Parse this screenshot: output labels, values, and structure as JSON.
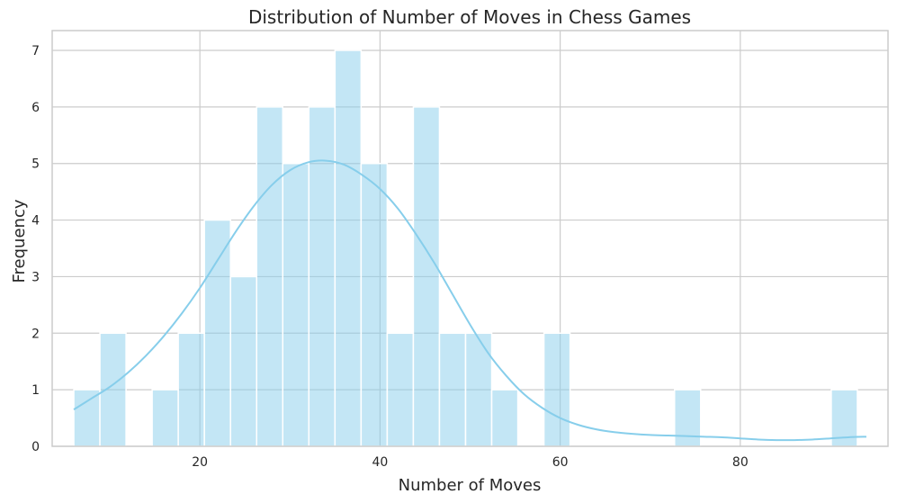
{
  "chart_data": {
    "type": "bar",
    "title": "Distribution of Number of Moves in Chess Games",
    "xlabel": "Number of Moves",
    "ylabel": "Frequency",
    "xlim": [
      3.6,
      96.4
    ],
    "ylim": [
      0,
      7.35
    ],
    "x_ticks": [
      20,
      40,
      60,
      80
    ],
    "y_ticks": [
      0,
      1,
      2,
      3,
      4,
      5,
      6,
      7
    ],
    "grid": true,
    "bins": [
      {
        "start": 6.0,
        "end": 8.9,
        "count": 1
      },
      {
        "start": 8.9,
        "end": 11.8,
        "count": 2
      },
      {
        "start": 11.8,
        "end": 14.7,
        "count": 0
      },
      {
        "start": 14.7,
        "end": 17.6,
        "count": 1
      },
      {
        "start": 17.6,
        "end": 20.5,
        "count": 2
      },
      {
        "start": 20.5,
        "end": 23.4,
        "count": 4
      },
      {
        "start": 23.4,
        "end": 26.3,
        "count": 3
      },
      {
        "start": 26.3,
        "end": 29.2,
        "count": 6
      },
      {
        "start": 29.2,
        "end": 32.1,
        "count": 5
      },
      {
        "start": 32.1,
        "end": 35.0,
        "count": 6
      },
      {
        "start": 35.0,
        "end": 37.9,
        "count": 7
      },
      {
        "start": 37.9,
        "end": 40.8,
        "count": 5
      },
      {
        "start": 40.8,
        "end": 43.7,
        "count": 2
      },
      {
        "start": 43.7,
        "end": 46.6,
        "count": 6
      },
      {
        "start": 46.6,
        "end": 49.5,
        "count": 2
      },
      {
        "start": 49.5,
        "end": 52.4,
        "count": 2
      },
      {
        "start": 52.4,
        "end": 55.3,
        "count": 1
      },
      {
        "start": 55.3,
        "end": 58.2,
        "count": 0
      },
      {
        "start": 58.2,
        "end": 61.1,
        "count": 2
      },
      {
        "start": 61.1,
        "end": 64.0,
        "count": 0
      },
      {
        "start": 64.0,
        "end": 66.9,
        "count": 0
      },
      {
        "start": 66.9,
        "end": 69.8,
        "count": 0
      },
      {
        "start": 69.8,
        "end": 72.7,
        "count": 0
      },
      {
        "start": 72.7,
        "end": 75.6,
        "count": 1
      },
      {
        "start": 75.6,
        "end": 78.5,
        "count": 0
      },
      {
        "start": 78.5,
        "end": 81.4,
        "count": 0
      },
      {
        "start": 81.4,
        "end": 84.3,
        "count": 0
      },
      {
        "start": 84.3,
        "end": 87.2,
        "count": 0
      },
      {
        "start": 87.2,
        "end": 90.1,
        "count": 0
      },
      {
        "start": 90.1,
        "end": 93.0,
        "count": 1
      }
    ],
    "kde": {
      "x": [
        6,
        8,
        10,
        12,
        14,
        16,
        18,
        20,
        22,
        24,
        26,
        28,
        30,
        32,
        34,
        36,
        38,
        40,
        42,
        44,
        46,
        48,
        50,
        52,
        54,
        56,
        58,
        60,
        62,
        64,
        66,
        68,
        70,
        72,
        74,
        76,
        78,
        80,
        82,
        84,
        86,
        88,
        90,
        92,
        94
      ],
      "y": [
        0.65,
        0.85,
        1.05,
        1.3,
        1.6,
        1.95,
        2.35,
        2.8,
        3.3,
        3.8,
        4.25,
        4.62,
        4.88,
        5.02,
        5.05,
        4.98,
        4.8,
        4.55,
        4.2,
        3.75,
        3.25,
        2.7,
        2.15,
        1.65,
        1.25,
        0.92,
        0.68,
        0.5,
        0.38,
        0.3,
        0.25,
        0.22,
        0.2,
        0.19,
        0.18,
        0.17,
        0.16,
        0.14,
        0.12,
        0.11,
        0.11,
        0.12,
        0.14,
        0.16,
        0.17
      ]
    },
    "colors": {
      "bar_fill": "#87ceeb",
      "bar_opacity": 0.5,
      "kde_line": "#87ceeb",
      "grid": "#cccccc",
      "spine": "#cccccc"
    }
  }
}
